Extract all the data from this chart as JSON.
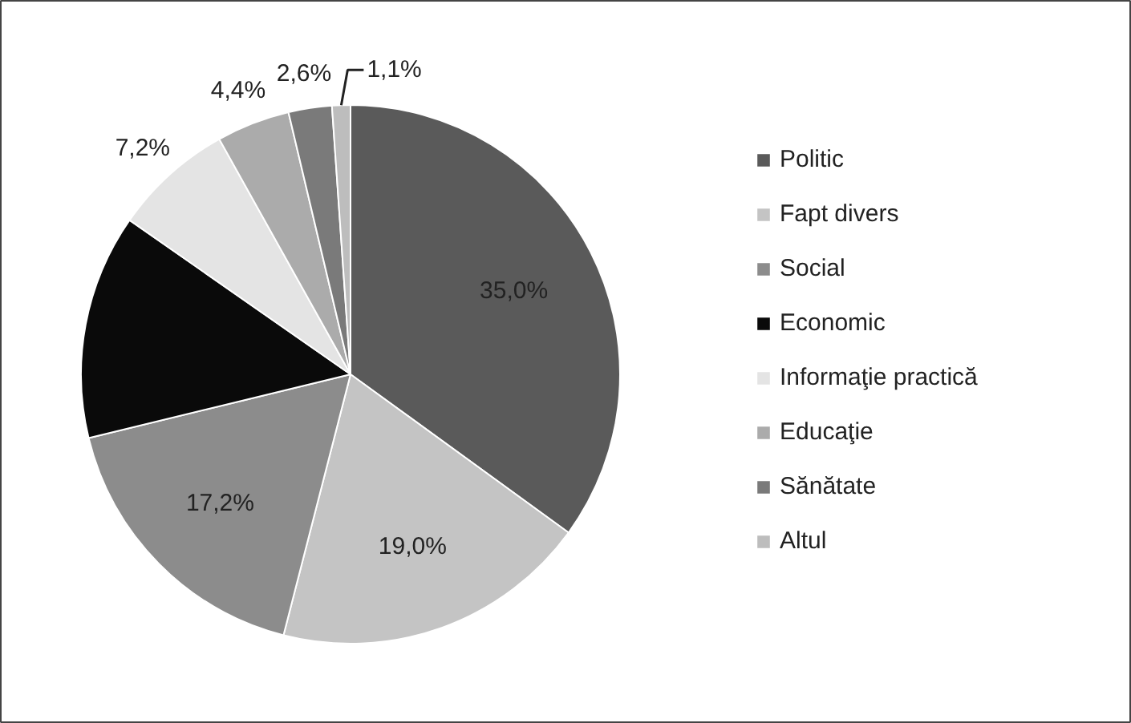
{
  "chart_data": {
    "type": "pie",
    "categories": [
      "Politic",
      "Fapt divers",
      "Social",
      "Economic",
      "Informaţie practică",
      "Educaţie",
      "Sănătate",
      "Altul"
    ],
    "values": [
      35.0,
      19.0,
      17.2,
      13.5,
      7.2,
      4.4,
      2.6,
      1.1
    ],
    "colors": [
      "#5a5a5a",
      "#c4c4c4",
      "#8c8c8c",
      "#0a0a0a",
      "#e4e4e4",
      "#ababab",
      "#7a7a7a",
      "#bdbdbd"
    ],
    "value_labels": [
      "35,0%",
      "19,0%",
      "17,2%",
      null,
      "7,2%",
      "4,4%",
      "2,6%",
      "1,1%"
    ],
    "legend": "right"
  }
}
